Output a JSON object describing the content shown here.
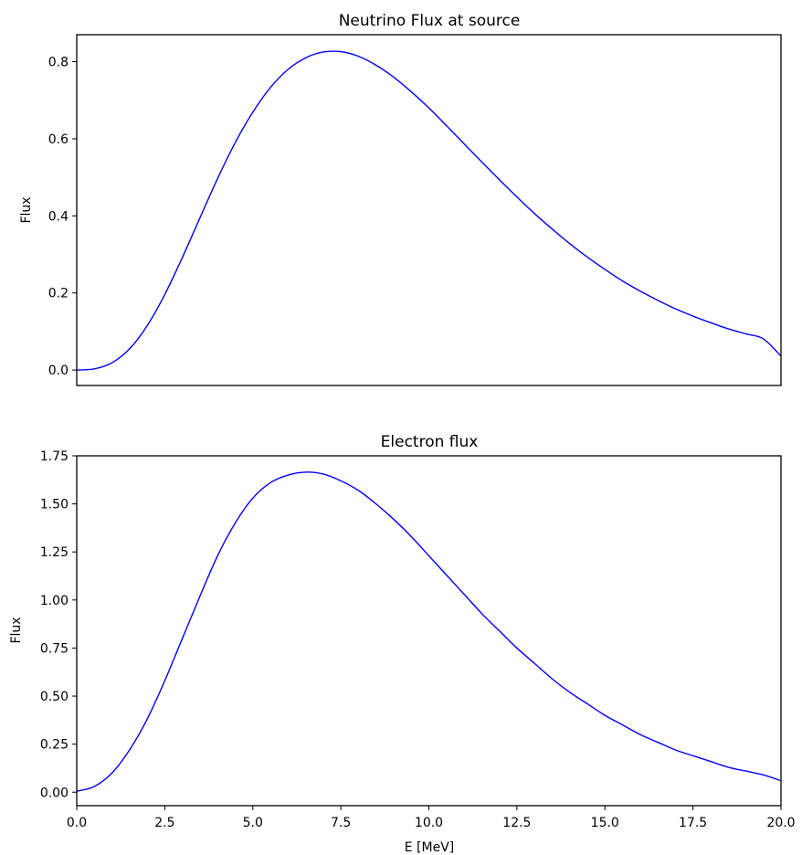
{
  "chart_data": [
    {
      "type": "line",
      "title": "Neutrino Flux at source",
      "xlabel": "",
      "ylabel": "Flux",
      "xlim": [
        0,
        20
      ],
      "ylim": [
        -0.04,
        0.87
      ],
      "x_ticks_visible": false,
      "yticks": [
        0.0,
        0.2,
        0.4,
        0.6,
        0.8
      ],
      "ytick_labels": [
        "0.0",
        "0.2",
        "0.4",
        "0.6",
        "0.8"
      ],
      "grid": false,
      "series": [
        {
          "color": "#0000ff",
          "x": [
            0,
            0.5,
            1,
            1.5,
            2,
            2.5,
            3,
            3.5,
            4,
            4.5,
            5,
            5.5,
            6,
            6.5,
            7,
            7.5,
            8,
            8.5,
            9,
            9.5,
            10,
            10.5,
            11,
            11.5,
            12,
            12.5,
            13,
            13.5,
            14,
            14.5,
            15,
            15.5,
            16,
            16.5,
            17,
            17.5,
            18,
            18.5,
            19,
            19.5,
            20
          ],
          "y": [
            0.0,
            0.003,
            0.019,
            0.055,
            0.115,
            0.196,
            0.292,
            0.395,
            0.497,
            0.59,
            0.669,
            0.733,
            0.78,
            0.81,
            0.825,
            0.826,
            0.814,
            0.791,
            0.76,
            0.722,
            0.68,
            0.634,
            0.587,
            0.54,
            0.494,
            0.449,
            0.406,
            0.366,
            0.328,
            0.293,
            0.261,
            0.231,
            0.205,
            0.181,
            0.159,
            0.14,
            0.123,
            0.107,
            0.094,
            0.081,
            0.036
          ]
        }
      ]
    },
    {
      "type": "line",
      "title": "Electron flux",
      "xlabel": "E [MeV]",
      "ylabel": "Flux",
      "xlim": [
        0,
        20
      ],
      "ylim": [
        -0.07,
        1.75
      ],
      "xticks": [
        0,
        2.5,
        5,
        7.5,
        10,
        12.5,
        15,
        17.5,
        20
      ],
      "xtick_labels": [
        "0.0",
        "2.5",
        "5.0",
        "7.5",
        "10.0",
        "12.5",
        "15.0",
        "17.5",
        "20.0"
      ],
      "yticks": [
        0,
        0.25,
        0.5,
        0.75,
        1.0,
        1.25,
        1.5,
        1.75
      ],
      "ytick_labels": [
        "0.00",
        "0.25",
        "0.50",
        "0.75",
        "1.00",
        "1.25",
        "1.50",
        "1.75"
      ],
      "grid": false,
      "series": [
        {
          "color": "#0000ff",
          "x": [
            0,
            0.5,
            1,
            1.5,
            2,
            2.5,
            3,
            3.5,
            4,
            4.5,
            5,
            5.5,
            6,
            6.5,
            7,
            7.5,
            8,
            8.5,
            9,
            9.5,
            10,
            10.5,
            11,
            11.5,
            12,
            12.5,
            13,
            13.5,
            14,
            14.5,
            15,
            15.5,
            16,
            16.5,
            17,
            17.5,
            18,
            18.5,
            19,
            19.5,
            20
          ],
          "y": [
            0.005,
            0.03,
            0.1,
            0.22,
            0.38,
            0.58,
            0.8,
            1.02,
            1.23,
            1.4,
            1.53,
            1.61,
            1.65,
            1.665,
            1.655,
            1.62,
            1.57,
            1.5,
            1.42,
            1.33,
            1.23,
            1.13,
            1.03,
            0.93,
            0.84,
            0.75,
            0.67,
            0.59,
            0.52,
            0.46,
            0.4,
            0.35,
            0.3,
            0.26,
            0.22,
            0.19,
            0.16,
            0.13,
            0.11,
            0.09,
            0.06
          ]
        }
      ]
    }
  ]
}
